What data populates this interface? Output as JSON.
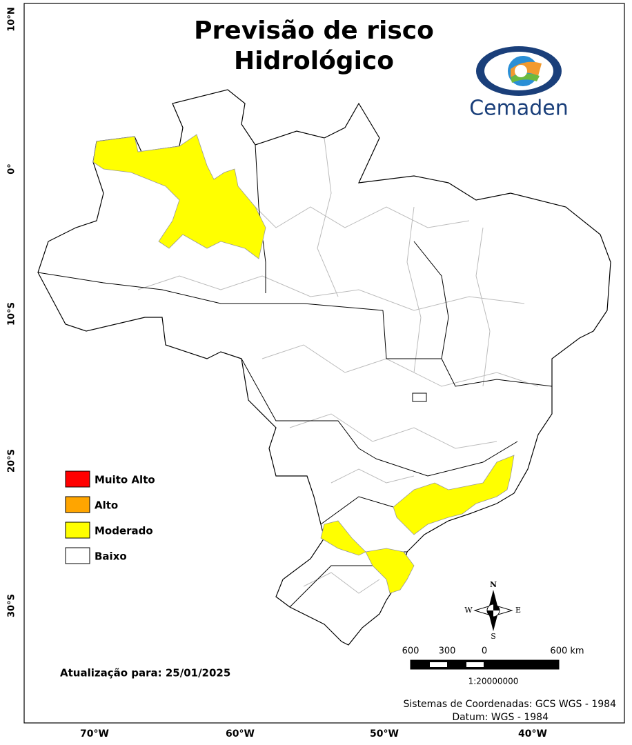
{
  "title_lines": [
    "Previsão de risco",
    "Hidrológico"
  ],
  "logo_text": "Cemaden",
  "legend": [
    {
      "label": "Muito Alto",
      "color": "#ff0000"
    },
    {
      "label": "Alto",
      "color": "#ffa500"
    },
    {
      "label": "Moderado",
      "color": "#ffff00"
    },
    {
      "label": "Baixo",
      "color": "#ffffff"
    }
  ],
  "update_text": "Atualização para: 25/01/2025",
  "lat_labels": [
    "10°N",
    "0°",
    "10°S",
    "20°S",
    "30°S"
  ],
  "lon_labels": [
    "70°W",
    "60°W",
    "50°W",
    "40°W"
  ],
  "compass": {
    "north": "N",
    "east": "E",
    "south": "S",
    "west": "W"
  },
  "scale_bar": {
    "labels": [
      "600",
      "300",
      "0",
      "600 km"
    ],
    "ratio": "1:20000000"
  },
  "footer_lines": [
    "Sistemas de Coordenadas: GCS WGS - 1984",
    "Datum: WGS - 1984"
  ]
}
